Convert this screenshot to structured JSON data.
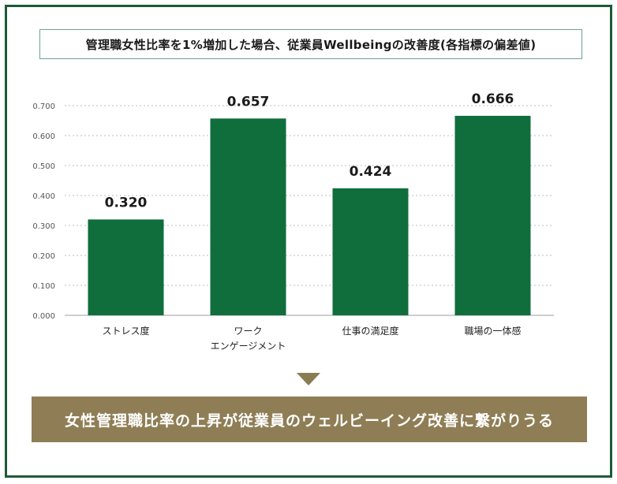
{
  "title": "管理職女性比率を1%増加した場合、従業員Wellbeingの改善度(各指標の偏差値)",
  "conclusion": "女性管理職比率の上昇が従業員のウェルビーイング改善に繋がりうる",
  "colors": {
    "frame": "#1e5a38",
    "bar": "#0f6e3b",
    "conclusion_bg": "#8f7e55",
    "arrow": "#8b7b52",
    "gridline": "#bdbdbd"
  },
  "chart_data": {
    "type": "bar",
    "title": "管理職女性比率を1%増加した場合、従業員Wellbeingの改善度(各指標の偏差値)",
    "categories": [
      [
        "ストレス度"
      ],
      [
        "ワーク",
        "エンゲージメント"
      ],
      [
        "仕事の満足度"
      ],
      [
        "職場の一体感"
      ]
    ],
    "values": [
      0.32,
      0.657,
      0.424,
      0.666
    ],
    "data_labels": [
      "0.320",
      "0.657",
      "0.424",
      "0.666"
    ],
    "y_ticks": [
      "0.000",
      "0.100",
      "0.200",
      "0.300",
      "0.400",
      "0.500",
      "0.600",
      "0.700"
    ],
    "ylim": [
      0,
      0.7
    ],
    "grid": "horizontal dashed",
    "xlabel": "",
    "ylabel": ""
  }
}
